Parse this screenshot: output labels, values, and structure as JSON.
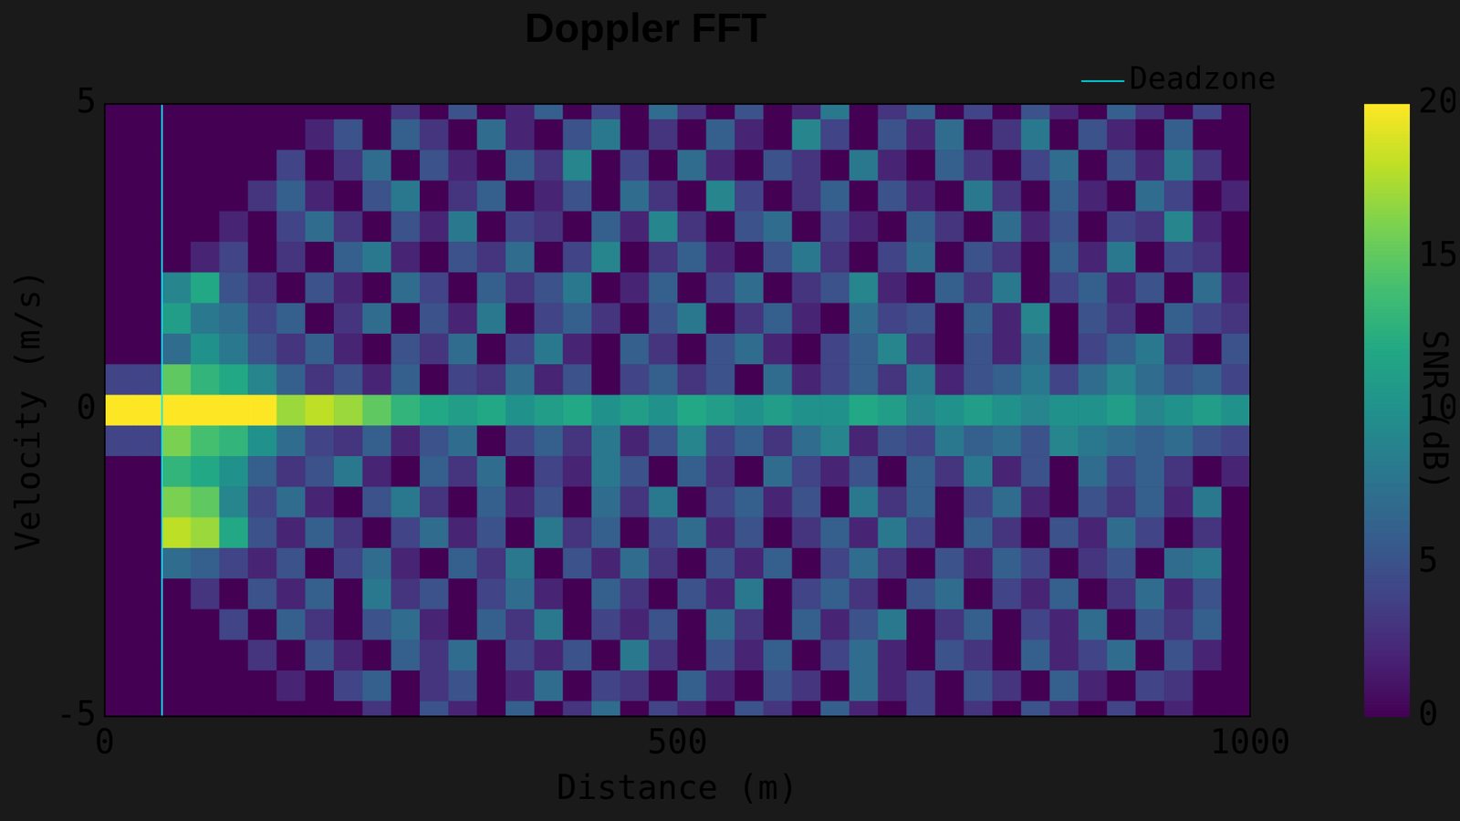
{
  "chart_data": {
    "type": "heatmap",
    "title": "Doppler FFT",
    "x_label": "Distance (m)",
    "y_label": "Velocity (m/s)",
    "xlim": [
      0,
      1000
    ],
    "ylim": [
      -5,
      5
    ],
    "xticks": [
      0,
      500,
      1000
    ],
    "yticks": [
      -5,
      0,
      5
    ],
    "grid": false,
    "legend": "upper right",
    "x": [
      12.5,
      37.5,
      62.5,
      87.5,
      112.5,
      137.5,
      162.5,
      187.5,
      212.5,
      237.5,
      262.5,
      287.5,
      312.5,
      337.5,
      362.5,
      387.5,
      412.5,
      437.5,
      462.5,
      487.5,
      512.5,
      537.5,
      562.5,
      587.5,
      612.5,
      637.5,
      662.5,
      687.5,
      712.5,
      737.5,
      762.5,
      787.5,
      812.5,
      837.5,
      862.5,
      887.5,
      912.5,
      937.5,
      962.5,
      987.5
    ],
    "y": [
      5,
      4.5,
      4,
      3.5,
      3,
      2.5,
      2,
      1.5,
      1,
      0.5,
      0,
      -0.5,
      -1,
      -1.5,
      -2,
      -2.5,
      -3,
      -3.5,
      -4,
      -4.5,
      -5
    ],
    "values": [
      [
        0,
        0,
        0,
        0,
        0,
        0,
        0,
        0,
        0,
        0,
        3,
        0,
        5,
        0,
        2,
        6,
        0,
        4,
        0,
        7,
        3,
        0,
        5,
        0,
        2,
        8,
        0,
        3,
        6,
        0,
        4,
        0,
        5,
        2,
        0,
        6,
        3,
        0,
        4,
        0
      ],
      [
        0,
        0,
        0,
        0,
        0,
        0,
        0,
        2,
        5,
        0,
        6,
        3,
        0,
        7,
        2,
        0,
        5,
        8,
        0,
        3,
        0,
        6,
        2,
        0,
        9,
        4,
        0,
        5,
        2,
        7,
        0,
        3,
        8,
        0,
        5,
        2,
        0,
        6,
        0,
        0
      ],
      [
        0,
        0,
        0,
        0,
        0,
        0,
        4,
        0,
        3,
        7,
        0,
        5,
        2,
        0,
        6,
        3,
        9,
        0,
        4,
        0,
        7,
        2,
        0,
        5,
        3,
        0,
        8,
        2,
        0,
        6,
        3,
        0,
        4,
        7,
        0,
        5,
        2,
        8,
        3,
        0
      ],
      [
        0,
        0,
        0,
        0,
        0,
        3,
        6,
        2,
        0,
        5,
        8,
        0,
        3,
        6,
        0,
        2,
        5,
        0,
        7,
        3,
        0,
        9,
        4,
        0,
        3,
        6,
        0,
        5,
        2,
        0,
        8,
        3,
        0,
        6,
        2,
        0,
        7,
        4,
        0,
        2
      ],
      [
        0,
        0,
        0,
        0,
        2,
        0,
        4,
        7,
        3,
        0,
        5,
        2,
        8,
        0,
        4,
        3,
        0,
        6,
        2,
        9,
        3,
        0,
        5,
        7,
        0,
        4,
        2,
        0,
        6,
        3,
        0,
        7,
        2,
        5,
        0,
        4,
        3,
        9,
        2,
        0
      ],
      [
        0,
        0,
        0,
        2,
        4,
        0,
        3,
        0,
        6,
        8,
        2,
        0,
        5,
        3,
        7,
        0,
        4,
        9,
        0,
        3,
        6,
        2,
        0,
        5,
        8,
        3,
        0,
        4,
        7,
        0,
        5,
        3,
        0,
        6,
        2,
        8,
        0,
        4,
        3,
        0
      ],
      [
        0,
        0,
        9,
        12,
        5,
        3,
        0,
        5,
        2,
        0,
        7,
        4,
        0,
        6,
        3,
        5,
        8,
        0,
        2,
        6,
        0,
        4,
        7,
        0,
        3,
        5,
        9,
        2,
        0,
        6,
        3,
        8,
        0,
        4,
        6,
        2,
        5,
        0,
        7,
        2
      ],
      [
        0,
        0,
        11,
        8,
        7,
        4,
        6,
        0,
        3,
        7,
        0,
        5,
        2,
        8,
        0,
        4,
        6,
        3,
        0,
        5,
        8,
        0,
        3,
        6,
        2,
        0,
        7,
        4,
        5,
        0,
        6,
        2,
        9,
        0,
        5,
        3,
        0,
        6,
        4,
        3
      ],
      [
        0,
        0,
        7,
        10,
        8,
        5,
        3,
        6,
        2,
        0,
        5,
        3,
        7,
        0,
        4,
        8,
        2,
        0,
        6,
        3,
        0,
        5,
        7,
        2,
        0,
        4,
        6,
        9,
        3,
        0,
        5,
        2,
        7,
        0,
        4,
        6,
        8,
        3,
        0,
        5
      ],
      [
        4,
        4,
        15,
        13,
        12,
        9,
        6,
        3,
        5,
        2,
        6,
        0,
        4,
        3,
        7,
        2,
        5,
        0,
        4,
        6,
        3,
        5,
        0,
        7,
        2,
        4,
        6,
        3,
        8,
        2,
        5,
        6,
        8,
        4,
        7,
        9,
        7,
        5,
        6,
        4
      ],
      [
        20,
        20,
        20,
        20,
        20,
        20,
        17,
        18,
        17,
        15,
        13,
        12,
        11,
        12,
        10,
        11,
        12,
        10,
        11,
        10,
        12,
        11,
        10,
        11,
        10,
        10,
        12,
        11,
        9,
        10,
        11,
        10,
        9,
        10,
        10,
        11,
        9,
        10,
        11,
        10
      ],
      [
        4,
        4,
        16,
        14,
        13,
        10,
        7,
        4,
        3,
        6,
        2,
        5,
        7,
        0,
        4,
        6,
        3,
        8,
        2,
        5,
        9,
        4,
        6,
        3,
        7,
        9,
        2,
        5,
        4,
        8,
        6,
        7,
        5,
        9,
        8,
        7,
        6,
        7,
        5,
        4
      ],
      [
        0,
        0,
        13,
        12,
        10,
        6,
        3,
        5,
        8,
        2,
        0,
        6,
        3,
        7,
        0,
        4,
        2,
        8,
        5,
        0,
        6,
        3,
        0,
        7,
        4,
        2,
        5,
        0,
        6,
        3,
        8,
        2,
        5,
        0,
        7,
        4,
        6,
        3,
        0,
        2
      ],
      [
        0,
        0,
        16,
        15,
        9,
        4,
        7,
        2,
        0,
        5,
        8,
        3,
        0,
        6,
        2,
        5,
        0,
        7,
        3,
        8,
        0,
        4,
        6,
        2,
        5,
        0,
        8,
        3,
        6,
        0,
        4,
        7,
        2,
        0,
        5,
        3,
        6,
        2,
        8,
        0
      ],
      [
        0,
        0,
        18,
        17,
        12,
        5,
        2,
        6,
        3,
        0,
        4,
        7,
        2,
        5,
        0,
        8,
        3,
        6,
        0,
        4,
        7,
        2,
        5,
        0,
        3,
        6,
        2,
        8,
        4,
        0,
        6,
        3,
        0,
        5,
        2,
        7,
        4,
        0,
        3,
        0
      ],
      [
        0,
        0,
        7,
        6,
        4,
        2,
        5,
        0,
        4,
        7,
        2,
        0,
        6,
        3,
        8,
        0,
        5,
        2,
        7,
        3,
        0,
        5,
        2,
        6,
        0,
        4,
        7,
        3,
        0,
        5,
        2,
        6,
        4,
        0,
        3,
        5,
        0,
        7,
        8,
        0
      ],
      [
        0,
        0,
        0,
        3,
        0,
        5,
        2,
        6,
        0,
        8,
        3,
        5,
        0,
        4,
        7,
        2,
        0,
        6,
        3,
        0,
        5,
        2,
        8,
        0,
        4,
        6,
        3,
        0,
        5,
        7,
        0,
        4,
        2,
        6,
        0,
        3,
        7,
        2,
        5,
        0
      ],
      [
        0,
        0,
        0,
        0,
        4,
        0,
        6,
        3,
        0,
        5,
        7,
        2,
        0,
        6,
        3,
        8,
        0,
        4,
        2,
        5,
        0,
        7,
        3,
        0,
        6,
        2,
        5,
        8,
        0,
        3,
        6,
        0,
        4,
        2,
        7,
        0,
        5,
        3,
        6,
        0
      ],
      [
        0,
        0,
        0,
        0,
        0,
        3,
        0,
        5,
        2,
        0,
        6,
        3,
        7,
        0,
        4,
        2,
        5,
        0,
        8,
        3,
        0,
        5,
        2,
        6,
        0,
        4,
        7,
        2,
        0,
        5,
        3,
        0,
        6,
        2,
        4,
        7,
        0,
        5,
        2,
        0
      ],
      [
        0,
        0,
        0,
        0,
        0,
        0,
        2,
        0,
        4,
        6,
        0,
        3,
        5,
        0,
        2,
        7,
        0,
        4,
        3,
        0,
        6,
        2,
        0,
        5,
        3,
        0,
        7,
        2,
        4,
        0,
        5,
        3,
        0,
        6,
        2,
        0,
        4,
        3,
        0,
        0
      ],
      [
        0,
        0,
        0,
        0,
        0,
        0,
        0,
        0,
        0,
        3,
        0,
        5,
        2,
        0,
        6,
        0,
        3,
        7,
        0,
        4,
        2,
        0,
        5,
        3,
        0,
        6,
        2,
        0,
        4,
        0,
        3,
        0,
        5,
        2,
        0,
        4,
        0,
        2,
        0,
        0
      ]
    ],
    "colorbar": {
      "label": "SNR (dB)",
      "range": [
        0,
        20
      ],
      "ticks": [
        0,
        5,
        10,
        15,
        20
      ]
    },
    "series": [
      {
        "name": "Deadzone",
        "color": "#00e5ee",
        "x": [
          50,
          50
        ],
        "values": [
          -5,
          5
        ]
      }
    ]
  }
}
